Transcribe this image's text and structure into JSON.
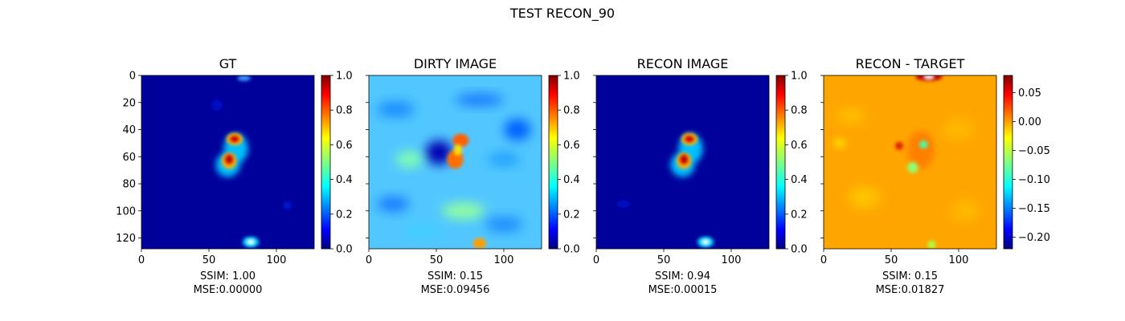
{
  "figure": {
    "suptitle": "TEST RECON_90"
  },
  "chart_data": [
    {
      "type": "heatmap",
      "title": "GT",
      "x_ticks": [
        0,
        50,
        100
      ],
      "y_ticks": [
        0,
        20,
        40,
        60,
        80,
        100,
        120
      ],
      "show_y_tick_labels": true,
      "image_extent": [
        0,
        128
      ],
      "colorbar": {
        "colormap": "jet",
        "range": [
          0.0,
          1.0
        ],
        "ticks": [
          "0.0",
          "0.2",
          "0.4",
          "0.6",
          "0.8",
          "1.0"
        ],
        "tick_values": [
          0,
          0.2,
          0.4,
          0.6,
          0.8,
          1.0
        ]
      },
      "caption": [
        "SSIM: 1.00",
        "MSE:0.00000"
      ]
    },
    {
      "type": "heatmap",
      "title": "DIRTY IMAGE",
      "x_ticks": [
        0,
        50,
        100
      ],
      "y_ticks": [
        0,
        20,
        40,
        60,
        80,
        100,
        120
      ],
      "show_y_tick_labels": false,
      "image_extent": [
        0,
        128
      ],
      "colorbar": {
        "colormap": "jet",
        "range": [
          0.0,
          1.0
        ],
        "ticks": [
          "0.0",
          "0.2",
          "0.4",
          "0.6",
          "0.8",
          "1.0"
        ],
        "tick_values": [
          0,
          0.2,
          0.4,
          0.6,
          0.8,
          1.0
        ]
      },
      "caption": [
        "SSIM: 0.15",
        "MSE:0.09456"
      ]
    },
    {
      "type": "heatmap",
      "title": "RECON IMAGE",
      "x_ticks": [
        0,
        50,
        100
      ],
      "y_ticks": [
        0,
        20,
        40,
        60,
        80,
        100,
        120
      ],
      "show_y_tick_labels": false,
      "image_extent": [
        0,
        128
      ],
      "colorbar": {
        "colormap": "jet",
        "range": [
          0.0,
          1.0
        ],
        "ticks": [
          "0.0",
          "0.2",
          "0.4",
          "0.6",
          "0.8",
          "1.0"
        ],
        "tick_values": [
          0,
          0.2,
          0.4,
          0.6,
          0.8,
          1.0
        ]
      },
      "caption": [
        "SSIM: 0.94",
        "MSE:0.00015"
      ]
    },
    {
      "type": "heatmap",
      "title": "RECON - TARGET",
      "x_ticks": [
        0,
        50,
        100
      ],
      "y_ticks": [
        0,
        20,
        40,
        60,
        80,
        100,
        120
      ],
      "show_y_tick_labels": false,
      "image_extent": [
        0,
        128
      ],
      "colorbar": {
        "colormap": "jet",
        "range": [
          -0.22,
          0.08
        ],
        "ticks": [
          "0.05",
          "0.00",
          "−0.05",
          "−0.10",
          "−0.15",
          "−0.20"
        ],
        "tick_values": [
          0.05,
          0.0,
          -0.05,
          -0.1,
          -0.15,
          -0.2
        ]
      },
      "caption": [
        "SSIM: 0.15",
        "MSE:0.01827"
      ]
    }
  ]
}
